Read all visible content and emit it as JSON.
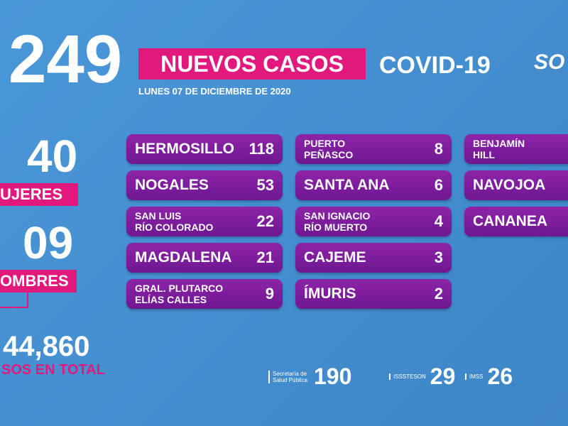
{
  "header": {
    "count": "249",
    "label": "NUEVOS CASOS",
    "subject": "COVID-19",
    "logo": "SO",
    "date": "LUNES 07 DE DICIEMBRE DE 2020"
  },
  "sidebar": {
    "women_count": "40",
    "women_label": "UJERES",
    "men_count": "09",
    "men_label": "OMBRES",
    "total_count": "44,860",
    "total_label": "SOS EN TOTAL"
  },
  "columns": [
    [
      {
        "name": [
          "HERMOSILLO"
        ],
        "value": "118"
      },
      {
        "name": [
          "NOGALES"
        ],
        "value": "53"
      },
      {
        "name": [
          "SAN LUIS",
          "RÍO COLORADO"
        ],
        "value": "22"
      },
      {
        "name": [
          "MAGDALENA"
        ],
        "value": "21"
      },
      {
        "name": [
          "GRAL. PLUTARCO",
          "ELÍAS CALLES"
        ],
        "value": "9"
      }
    ],
    [
      {
        "name": [
          "PUERTO",
          "PEÑASCO"
        ],
        "value": "8"
      },
      {
        "name": [
          "SANTA ANA"
        ],
        "value": "6"
      },
      {
        "name": [
          "SAN IGNACIO",
          "RÍO MUERTO"
        ],
        "value": "4"
      },
      {
        "name": [
          "CAJEME"
        ],
        "value": "3"
      },
      {
        "name": [
          "ÍMURIS"
        ],
        "value": "2"
      }
    ],
    [
      {
        "name": [
          "BENJAMÍN",
          "HILL"
        ]
      },
      {
        "name": [
          "NAVOJOA"
        ]
      },
      {
        "name": [
          "CANANEA"
        ]
      }
    ]
  ],
  "institutions": [
    {
      "name": "Secretaría de Salud Pública",
      "value": "190"
    },
    {
      "name": "ISSSTESON",
      "value": "29"
    },
    {
      "name": "IMSS",
      "value": "26"
    }
  ]
}
